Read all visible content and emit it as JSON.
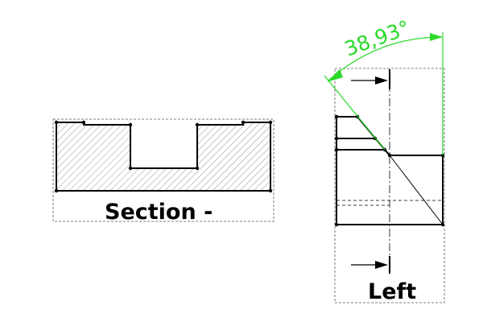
{
  "views": {
    "section": {
      "label": "Section -"
    },
    "left": {
      "label": "Left"
    }
  },
  "dimension": {
    "angle_text": "38,93°",
    "color": "#2bd92b"
  },
  "colors": {
    "line": "#000000",
    "hatch": "#888888",
    "frame": "#555555"
  }
}
